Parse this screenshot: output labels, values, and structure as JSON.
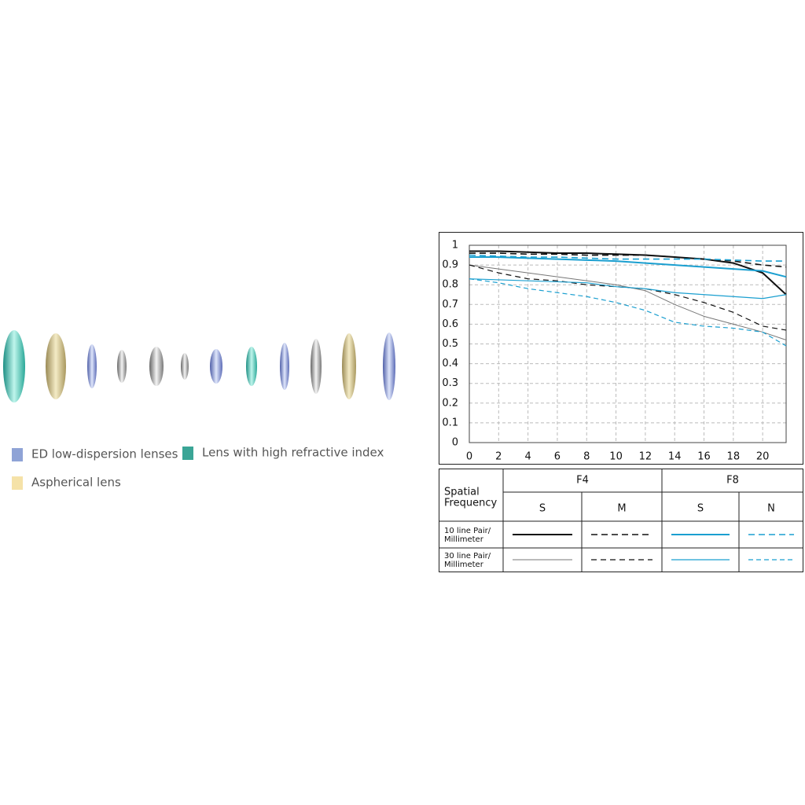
{
  "chart_data": {
    "type": "line",
    "x": [
      0,
      2,
      4,
      6,
      8,
      10,
      12,
      14,
      16,
      18,
      20,
      21.6
    ],
    "xlim": [
      0,
      21.6
    ],
    "xticks": [
      0,
      2,
      4,
      6,
      8,
      10,
      12,
      14,
      16,
      18,
      20
    ],
    "ylim": [
      0,
      1
    ],
    "yticks": [
      0,
      0.1,
      0.2,
      0.3,
      0.4,
      0.5,
      0.6,
      0.7,
      0.8,
      0.9,
      1
    ],
    "grid": true,
    "series": [
      {
        "color": "#111111",
        "dash": "none",
        "width": 2,
        "values": [
          0.97,
          0.97,
          0.965,
          0.96,
          0.96,
          0.955,
          0.95,
          0.94,
          0.93,
          0.91,
          0.86,
          0.75
        ]
      },
      {
        "color": "#111111",
        "dash": "8 5",
        "width": 1.6,
        "values": [
          0.96,
          0.96,
          0.955,
          0.955,
          0.95,
          0.95,
          0.95,
          0.94,
          0.93,
          0.92,
          0.9,
          0.89
        ]
      },
      {
        "color": "#1a9fd0",
        "dash": "none",
        "width": 2,
        "values": [
          0.94,
          0.94,
          0.935,
          0.93,
          0.925,
          0.92,
          0.91,
          0.9,
          0.89,
          0.88,
          0.87,
          0.84
        ]
      },
      {
        "color": "#1a9fd0",
        "dash": "8 5",
        "width": 1.6,
        "values": [
          0.95,
          0.945,
          0.94,
          0.94,
          0.935,
          0.93,
          0.93,
          0.93,
          0.93,
          0.925,
          0.92,
          0.92
        ]
      },
      {
        "color": "#777777",
        "dash": "none",
        "width": 1,
        "values": [
          0.9,
          0.88,
          0.86,
          0.84,
          0.82,
          0.8,
          0.77,
          0.7,
          0.64,
          0.6,
          0.56,
          0.52
        ]
      },
      {
        "color": "#111111",
        "dash": "7 5",
        "width": 1.2,
        "values": [
          0.9,
          0.86,
          0.83,
          0.82,
          0.8,
          0.79,
          0.78,
          0.75,
          0.71,
          0.66,
          0.59,
          0.57
        ]
      },
      {
        "color": "#1a9fd0",
        "dash": "none",
        "width": 1.2,
        "values": [
          0.83,
          0.825,
          0.82,
          0.815,
          0.81,
          0.79,
          0.78,
          0.76,
          0.75,
          0.74,
          0.73,
          0.75
        ]
      },
      {
        "color": "#1a9fd0",
        "dash": "6 4",
        "width": 1.2,
        "values": [
          0.83,
          0.81,
          0.78,
          0.76,
          0.74,
          0.71,
          0.67,
          0.61,
          0.59,
          0.58,
          0.56,
          0.49
        ]
      }
    ]
  },
  "mtf_legend": {
    "corner": [
      "Spatial",
      "Frequency"
    ],
    "apertures": [
      "F4",
      "F8"
    ],
    "columns": [
      "S",
      "M",
      "S",
      "N"
    ],
    "rows": [
      [
        "10 line Pair/",
        "Millimeter"
      ],
      [
        "30 line Pair/",
        "Millimeter"
      ]
    ]
  },
  "lens_legend": [
    {
      "label": "ED low-dispersion lenses",
      "color": "#8fa3d6"
    },
    {
      "label": "Lens with high refractive index",
      "color": "#3aa596"
    },
    {
      "label": "Aspherical lens",
      "color": "#f5e2a8"
    }
  ]
}
